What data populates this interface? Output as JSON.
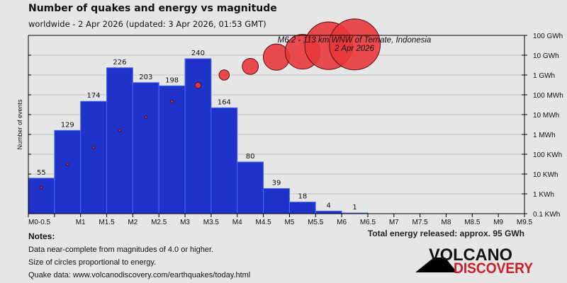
{
  "header": {
    "title": "Number of quakes and energy vs magnitude",
    "subtitle": "worldwide -  2 Apr 2026 (updated: 3 Apr 2026, 01:53 GMT)"
  },
  "chart_data": {
    "type": "bar",
    "ylabel": "Number of events",
    "categories": [
      "M0-0.5",
      "M0.5-1",
      "M1-1.5",
      "M1.5-2",
      "M2-2.5",
      "M2.5-3",
      "M3-3.5",
      "M3.5-4",
      "M4-4.5",
      "M4.5-5",
      "M5-5.5",
      "M5.5-6",
      "M6-6.5",
      "M6.5-7",
      "M7-7.5",
      "M7.5-8",
      "M8-8.5",
      "M8.5-9",
      "M9-9.5"
    ],
    "x_tick_labels": [
      "M0-0.5",
      "",
      "M1",
      "M1.5",
      "M2",
      "M2.5",
      "M3",
      "M3.5",
      "M4",
      "M4.5",
      "M5",
      "M5.5",
      "M6",
      "M6.5",
      "M7",
      "M7.5",
      "M8",
      "M8.5",
      "M9",
      "M9.5"
    ],
    "series": [
      {
        "type": "bar",
        "axis": "left",
        "values": [
          55,
          129,
          174,
          226,
          203,
          198,
          240,
          164,
          80,
          39,
          18,
          4,
          1,
          null,
          null,
          null,
          null,
          null,
          null
        ],
        "color": "#1f33c9"
      },
      {
        "type": "bubble",
        "axis": "right",
        "unit": "KWh",
        "scale": "log",
        "values": [
          2.1,
          31,
          220,
          1600,
          7500,
          46000,
          300000,
          1000000,
          2700000,
          8000000,
          15000000,
          30000000,
          35000000,
          null,
          null,
          null,
          null,
          null,
          null
        ],
        "color": "#e8393c"
      }
    ],
    "right_axis": {
      "scale": "log",
      "range_kwh": [
        0.1,
        100000000
      ],
      "tick_labels": [
        "0.1 KWh",
        "1 KWh",
        "10 KWh",
        "100 KWh",
        "1 MWh",
        "10 MWh",
        "100 MWh",
        "1 GWh",
        "10 GWh",
        "100 GWh"
      ]
    },
    "grid": true,
    "annotation": {
      "line1": "M6.2 - 113 km WNW of Ternate, Indonesia",
      "line2": "2 Apr 2026"
    }
  },
  "notes": {
    "heading": "Notes:",
    "lines": [
      "Data near-complete from magnitudes of 4.0 or higher.",
      "Size of circles proportional to energy.",
      "Quake data: www.volcanodiscovery.com/earthquakes/today.html"
    ]
  },
  "total_energy": "Total energy released: approx. 95 GWh",
  "logo": {
    "line1": "VOLCANO",
    "line2": "DISCOVERY"
  }
}
